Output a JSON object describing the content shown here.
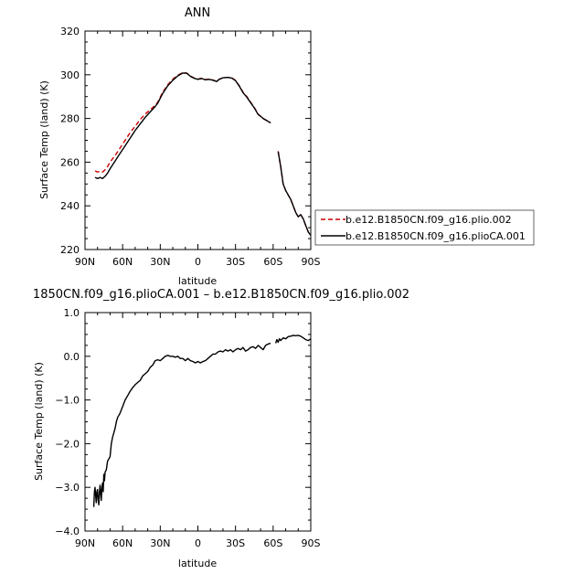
{
  "chart_data": [
    {
      "type": "line",
      "title": "ANN",
      "xlabel": "latitude",
      "ylabel": "Surface Temp (land) (K)",
      "x_ticks": [
        "90N",
        "60N",
        "30N",
        "0",
        "30S",
        "60S",
        "90S"
      ],
      "y_ticks": [
        "220",
        "240",
        "260",
        "280",
        "300",
        "320"
      ],
      "xlim": [
        90,
        -90
      ],
      "ylim": [
        220,
        320
      ],
      "legend": "right",
      "series": [
        {
          "name": "b.e12.B1850CN.f09_g16.plio.002",
          "color": "#cc0000",
          "dash": "dashed",
          "segments": [
            [
              [
                -82,
                256
              ],
              [
                -80,
                255.5
              ],
              [
                -78,
                255.8
              ],
              [
                -76,
                255.5
              ],
              [
                -74,
                256.5
              ],
              [
                -72,
                258
              ],
              [
                -70,
                260
              ],
              [
                -66,
                263
              ],
              [
                -62,
                266.5
              ],
              [
                -58,
                270
              ],
              [
                -54,
                273.5
              ],
              [
                -50,
                276.5
              ],
              [
                -46,
                279.5
              ],
              [
                -42,
                282
              ],
              [
                -38,
                284
              ],
              [
                -34,
                286
              ],
              [
                -32,
                287.5
              ],
              [
                -28,
                292
              ],
              [
                -24,
                295.5
              ],
              [
                -20,
                298
              ],
              [
                -16,
                299.8
              ],
              [
                -12,
                301
              ],
              [
                -9,
                300.8
              ],
              [
                -6,
                299.5
              ],
              [
                -3,
                298.5
              ],
              [
                0,
                298
              ],
              [
                3,
                298.4
              ],
              [
                6,
                297.8
              ],
              [
                9,
                298
              ],
              [
                12,
                297.6
              ],
              [
                15,
                297
              ],
              [
                17,
                298
              ],
              [
                20,
                298.6
              ],
              [
                24,
                298.8
              ],
              [
                27,
                298.6
              ],
              [
                30,
                297.4
              ],
              [
                33,
                295
              ],
              [
                36,
                292
              ],
              [
                39,
                290
              ],
              [
                42,
                287.5
              ],
              [
                45,
                285
              ],
              [
                48,
                282
              ],
              [
                50,
                281
              ],
              [
                52,
                280
              ],
              [
                55,
                279
              ],
              [
                57,
                278.5
              ],
              [
                58,
                278
              ]
            ],
            [
              [
                64,
                265
              ],
              [
                66,
                258
              ],
              [
                68,
                250
              ],
              [
                70,
                247
              ],
              [
                72,
                245
              ],
              [
                74,
                243
              ],
              [
                76,
                240
              ],
              [
                78,
                237
              ],
              [
                80,
                235
              ],
              [
                82,
                236
              ],
              [
                84,
                234
              ],
              [
                86,
                231
              ],
              [
                88,
                228
              ],
              [
                90,
                226.5
              ]
            ]
          ]
        },
        {
          "name": "b.e12.B1850CN.f09_g16.plioCA.001",
          "color": "#000000",
          "dash": "solid",
          "segments": [
            [
              [
                -82,
                253
              ],
              [
                -80,
                252.5
              ],
              [
                -78,
                253
              ],
              [
                -76,
                252.5
              ],
              [
                -74,
                253.5
              ],
              [
                -72,
                255
              ],
              [
                -70,
                257
              ],
              [
                -66,
                260.5
              ],
              [
                -62,
                264
              ],
              [
                -58,
                267.5
              ],
              [
                -54,
                271
              ],
              [
                -50,
                274.5
              ],
              [
                -46,
                277.5
              ],
              [
                -42,
                280.5
              ],
              [
                -38,
                283
              ],
              [
                -34,
                285.5
              ],
              [
                -32,
                287
              ],
              [
                -28,
                291.5
              ],
              [
                -24,
                295
              ],
              [
                -20,
                297.5
              ],
              [
                -16,
                299.5
              ],
              [
                -12,
                300.8
              ],
              [
                -9,
                300.7
              ],
              [
                -6,
                299.3
              ],
              [
                -3,
                298.4
              ],
              [
                0,
                297.9
              ],
              [
                3,
                298.3
              ],
              [
                6,
                297.7
              ],
              [
                9,
                297.9
              ],
              [
                12,
                297.5
              ],
              [
                15,
                296.9
              ],
              [
                17,
                297.9
              ],
              [
                20,
                298.6
              ],
              [
                24,
                298.8
              ],
              [
                27,
                298.5
              ],
              [
                30,
                297.3
              ],
              [
                33,
                294.8
              ],
              [
                36,
                291.8
              ],
              [
                39,
                289.8
              ],
              [
                42,
                287.3
              ],
              [
                45,
                284.8
              ],
              [
                48,
                281.8
              ],
              [
                50,
                281
              ],
              [
                52,
                280
              ],
              [
                55,
                279
              ],
              [
                57,
                278.3
              ],
              [
                58,
                278
              ]
            ],
            [
              [
                64,
                264.8
              ],
              [
                66,
                258
              ],
              [
                68,
                250
              ],
              [
                70,
                247
              ],
              [
                72,
                245
              ],
              [
                74,
                243
              ],
              [
                76,
                240
              ],
              [
                78,
                237
              ],
              [
                80,
                235
              ],
              [
                82,
                236
              ],
              [
                84,
                234
              ],
              [
                86,
                231
              ],
              [
                88,
                228
              ],
              [
                90,
                226.5
              ]
            ]
          ]
        }
      ]
    },
    {
      "type": "line",
      "title": "1850CN.f09_g16.plioCA.001 – b.e12.B1850CN.f09_g16.plio.002",
      "xlabel": "latitude",
      "ylabel": "Surface Temp (land) (K)",
      "x_ticks": [
        "90N",
        "60N",
        "30N",
        "0",
        "30S",
        "60S",
        "90S"
      ],
      "y_ticks": [
        "−4.0",
        "−3.0",
        "−2.0",
        "−1.0",
        "0.0",
        "1.0"
      ],
      "xlim": [
        90,
        -90
      ],
      "ylim": [
        -4,
        1
      ],
      "series": [
        {
          "color": "#000000",
          "dash": "solid",
          "segments": [
            [
              [
                -83,
                -3.45
              ],
              [
                -82.5,
                -3.1
              ],
              [
                -82,
                -3.0
              ],
              [
                -81.5,
                -3.2
              ],
              [
                -81,
                -3.35
              ],
              [
                -80.5,
                -3.1
              ],
              [
                -80,
                -3.05
              ],
              [
                -79.5,
                -3.3
              ],
              [
                -79,
                -3.4
              ],
              [
                -78.5,
                -3.1
              ],
              [
                -78,
                -2.95
              ],
              [
                -77.5,
                -3.15
              ],
              [
                -77,
                -3.3
              ],
              [
                -76.5,
                -3.0
              ],
              [
                -76,
                -2.9
              ],
              [
                -75.5,
                -3.1
              ],
              [
                -75,
                -2.7
              ],
              [
                -74.5,
                -2.85
              ],
              [
                -74,
                -2.65
              ],
              [
                -73,
                -2.6
              ],
              [
                -72,
                -2.4
              ],
              [
                -71,
                -2.35
              ],
              [
                -70,
                -2.3
              ],
              [
                -69,
                -2.0
              ],
              [
                -68,
                -1.85
              ],
              [
                -67,
                -1.75
              ],
              [
                -66,
                -1.65
              ],
              [
                -65,
                -1.5
              ],
              [
                -64,
                -1.4
              ],
              [
                -63,
                -1.35
              ],
              [
                -62,
                -1.3
              ],
              [
                -60,
                -1.15
              ],
              [
                -58,
                -1.0
              ],
              [
                -56,
                -0.9
              ],
              [
                -54,
                -0.8
              ],
              [
                -52,
                -0.72
              ],
              [
                -50,
                -0.65
              ],
              [
                -48,
                -0.6
              ],
              [
                -46,
                -0.55
              ],
              [
                -44,
                -0.45
              ],
              [
                -42,
                -0.4
              ],
              [
                -40,
                -0.35
              ],
              [
                -38,
                -0.25
              ],
              [
                -36,
                -0.2
              ],
              [
                -34,
                -0.1
              ],
              [
                -32,
                -0.08
              ],
              [
                -30,
                -0.1
              ],
              [
                -28,
                -0.05
              ],
              [
                -26,
                0.0
              ],
              [
                -24,
                0.02
              ],
              [
                -22,
                0.0
              ],
              [
                -20,
                0.0
              ],
              [
                -18,
                -0.02
              ],
              [
                -16,
                0.0
              ],
              [
                -14,
                -0.05
              ],
              [
                -12,
                -0.05
              ],
              [
                -10,
                -0.1
              ],
              [
                -8,
                -0.05
              ],
              [
                -6,
                -0.1
              ],
              [
                -4,
                -0.12
              ],
              [
                -2,
                -0.15
              ],
              [
                0,
                -0.12
              ],
              [
                2,
                -0.15
              ],
              [
                4,
                -0.12
              ],
              [
                6,
                -0.1
              ],
              [
                8,
                -0.05
              ],
              [
                10,
                0.0
              ],
              [
                12,
                0.05
              ],
              [
                14,
                0.05
              ],
              [
                16,
                0.1
              ],
              [
                18,
                0.12
              ],
              [
                20,
                0.1
              ],
              [
                22,
                0.15
              ],
              [
                24,
                0.12
              ],
              [
                26,
                0.15
              ],
              [
                28,
                0.1
              ],
              [
                30,
                0.15
              ],
              [
                32,
                0.18
              ],
              [
                34,
                0.15
              ],
              [
                36,
                0.2
              ],
              [
                38,
                0.12
              ],
              [
                40,
                0.15
              ],
              [
                42,
                0.2
              ],
              [
                44,
                0.22
              ],
              [
                46,
                0.18
              ],
              [
                48,
                0.25
              ],
              [
                50,
                0.2
              ],
              [
                52,
                0.15
              ],
              [
                54,
                0.25
              ],
              [
                56,
                0.28
              ],
              [
                58,
                0.3
              ]
            ],
            [
              [
                62,
                0.3
              ],
              [
                63,
                0.38
              ],
              [
                64,
                0.32
              ],
              [
                65,
                0.4
              ],
              [
                66,
                0.36
              ],
              [
                68,
                0.42
              ],
              [
                70,
                0.4
              ],
              [
                72,
                0.45
              ],
              [
                74,
                0.46
              ],
              [
                76,
                0.48
              ],
              [
                78,
                0.47
              ],
              [
                80,
                0.48
              ],
              [
                82,
                0.46
              ],
              [
                84,
                0.42
              ],
              [
                86,
                0.38
              ],
              [
                88,
                0.36
              ],
              [
                90,
                0.4
              ]
            ]
          ]
        }
      ]
    }
  ]
}
